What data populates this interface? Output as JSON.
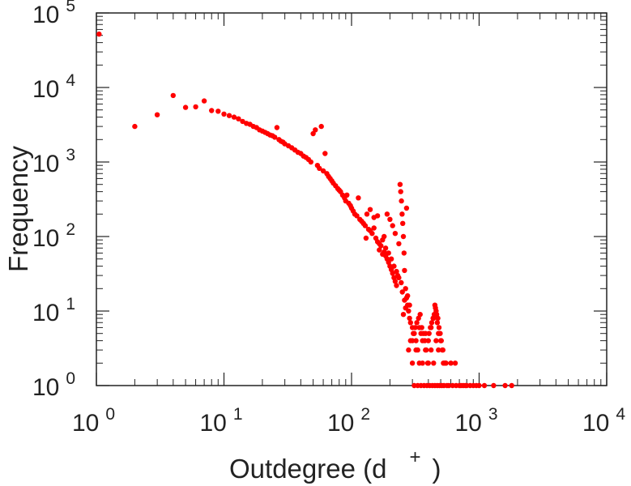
{
  "chart_data": {
    "type": "scatter",
    "xlabel": "Outdegree (d",
    "xlabel_sup": "+",
    "xlabel_close": ")",
    "ylabel": "Frequency",
    "xscale": "log",
    "yscale": "log",
    "xlim": [
      1,
      10000
    ],
    "ylim": [
      1,
      100000
    ],
    "grid": false,
    "marker_color": "#ff0000",
    "x_ticks": [
      {
        "base": "10",
        "exp": "0"
      },
      {
        "base": "10",
        "exp": "1"
      },
      {
        "base": "10",
        "exp": "2"
      },
      {
        "base": "10",
        "exp": "3"
      },
      {
        "base": "10",
        "exp": "4"
      }
    ],
    "y_ticks": [
      {
        "base": "10",
        "exp": "0"
      },
      {
        "base": "10",
        "exp": "1"
      },
      {
        "base": "10",
        "exp": "2"
      },
      {
        "base": "10",
        "exp": "3"
      },
      {
        "base": "10",
        "exp": "4"
      },
      {
        "base": "10",
        "exp": "5"
      }
    ],
    "points": [
      [
        1.05,
        52000
      ],
      [
        2,
        3000
      ],
      [
        3,
        4300
      ],
      [
        4,
        7800
      ],
      [
        5,
        5400
      ],
      [
        6,
        5500
      ],
      [
        7,
        6600
      ],
      [
        8,
        4900
      ],
      [
        9,
        4800
      ],
      [
        10,
        4400
      ],
      [
        11,
        4200
      ],
      [
        12,
        4000
      ],
      [
        13,
        3800
      ],
      [
        14,
        3500
      ],
      [
        15,
        3300
      ],
      [
        16,
        3200
      ],
      [
        17,
        3000
      ],
      [
        18,
        2900
      ],
      [
        19,
        2700
      ],
      [
        20,
        2600
      ],
      [
        21,
        2500
      ],
      [
        22,
        2400
      ],
      [
        23,
        2300
      ],
      [
        24,
        2250
      ],
      [
        25,
        2150
      ],
      [
        26,
        2900
      ],
      [
        27,
        2000
      ],
      [
        28,
        1900
      ],
      [
        29,
        1850
      ],
      [
        30,
        1750
      ],
      [
        32,
        1650
      ],
      [
        34,
        1550
      ],
      [
        36,
        1450
      ],
      [
        38,
        1350
      ],
      [
        40,
        1300
      ],
      [
        42,
        1200
      ],
      [
        44,
        1150
      ],
      [
        46,
        1080
      ],
      [
        48,
        1000
      ],
      [
        50,
        2400
      ],
      [
        52,
        2700
      ],
      [
        54,
        900
      ],
      [
        56,
        820
      ],
      [
        58,
        3000
      ],
      [
        60,
        760
      ],
      [
        62,
        1300
      ],
      [
        64,
        700
      ],
      [
        66,
        640
      ],
      [
        68,
        600
      ],
      [
        70,
        560
      ],
      [
        72,
        520
      ],
      [
        75,
        480
      ],
      [
        78,
        440
      ],
      [
        80,
        420
      ],
      [
        82,
        400
      ],
      [
        85,
        360
      ],
      [
        88,
        330
      ],
      [
        90,
        300
      ],
      [
        92,
        360
      ],
      [
        95,
        280
      ],
      [
        98,
        260
      ],
      [
        100,
        240
      ],
      [
        103,
        220
      ],
      [
        106,
        200
      ],
      [
        110,
        190
      ],
      [
        113,
        330
      ],
      [
        116,
        170
      ],
      [
        120,
        160
      ],
      [
        124,
        150
      ],
      [
        128,
        140
      ],
      [
        132,
        200
      ],
      [
        136,
        125
      ],
      [
        140,
        230
      ],
      [
        145,
        110
      ],
      [
        150,
        180
      ],
      [
        155,
        95
      ],
      [
        160,
        85
      ],
      [
        165,
        80
      ],
      [
        170,
        75
      ],
      [
        175,
        90
      ],
      [
        180,
        62
      ],
      [
        185,
        55
      ],
      [
        190,
        50
      ],
      [
        195,
        45
      ],
      [
        200,
        40
      ],
      [
        205,
        36
      ],
      [
        210,
        32
      ],
      [
        215,
        28
      ],
      [
        220,
        25
      ],
      [
        225,
        22
      ],
      [
        230,
        30
      ],
      [
        235,
        80
      ],
      [
        240,
        500
      ],
      [
        243,
        400
      ],
      [
        246,
        300
      ],
      [
        249,
        200
      ],
      [
        252,
        150
      ],
      [
        255,
        100
      ],
      [
        258,
        60
      ],
      [
        260,
        35
      ],
      [
        265,
        20
      ],
      [
        270,
        15
      ],
      [
        275,
        12
      ],
      [
        280,
        10
      ],
      [
        285,
        8
      ],
      [
        290,
        7
      ],
      [
        300,
        6
      ],
      [
        310,
        5
      ],
      [
        320,
        4
      ],
      [
        330,
        3
      ],
      [
        340,
        2
      ],
      [
        350,
        5
      ],
      [
        360,
        4
      ],
      [
        380,
        3
      ],
      [
        400,
        2
      ],
      [
        420,
        6
      ],
      [
        440,
        8
      ],
      [
        450,
        12
      ],
      [
        460,
        10
      ],
      [
        470,
        7
      ],
      [
        480,
        5
      ],
      [
        500,
        4
      ],
      [
        520,
        3
      ],
      [
        550,
        2
      ],
      [
        600,
        2
      ],
      [
        650,
        2
      ],
      [
        700,
        1
      ],
      [
        750,
        1
      ],
      [
        800,
        1
      ],
      [
        900,
        1
      ],
      [
        1000,
        1
      ],
      [
        1100,
        1
      ],
      [
        1300,
        1
      ],
      [
        1600,
        1
      ],
      [
        1800,
        1
      ],
      [
        270,
        240
      ],
      [
        200,
        170
      ],
      [
        160,
        190
      ],
      [
        140,
        120
      ],
      [
        180,
        100
      ],
      [
        130,
        95
      ],
      [
        210,
        140
      ],
      [
        190,
        200
      ],
      [
        220,
        110
      ],
      [
        150,
        130
      ],
      [
        300,
        4
      ],
      [
        320,
        3
      ],
      [
        340,
        6
      ],
      [
        360,
        2
      ],
      [
        380,
        5
      ],
      [
        400,
        4
      ],
      [
        420,
        3
      ],
      [
        440,
        2
      ],
      [
        460,
        4
      ],
      [
        480,
        3
      ],
      [
        300,
        2
      ],
      [
        310,
        1
      ],
      [
        330,
        1
      ],
      [
        350,
        1
      ],
      [
        370,
        1
      ],
      [
        390,
        1
      ],
      [
        410,
        1
      ],
      [
        430,
        1
      ],
      [
        450,
        1
      ],
      [
        470,
        1
      ],
      [
        490,
        1
      ],
      [
        510,
        1
      ],
      [
        530,
        1
      ],
      [
        560,
        1
      ],
      [
        580,
        1
      ],
      [
        620,
        1
      ],
      [
        660,
        1
      ],
      [
        720,
        1
      ],
      [
        780,
        1
      ],
      [
        850,
        1
      ],
      [
        950,
        1
      ],
      [
        280,
        3
      ],
      [
        290,
        4
      ],
      [
        305,
        5
      ],
      [
        315,
        6
      ],
      [
        325,
        7
      ],
      [
        335,
        8
      ],
      [
        345,
        9
      ],
      [
        355,
        6
      ],
      [
        365,
        5
      ],
      [
        375,
        4
      ],
      [
        385,
        3
      ],
      [
        395,
        2
      ],
      [
        405,
        5
      ],
      [
        415,
        6
      ],
      [
        425,
        7
      ],
      [
        435,
        8
      ],
      [
        445,
        9
      ],
      [
        455,
        11
      ],
      [
        465,
        9
      ],
      [
        475,
        8
      ],
      [
        485,
        6
      ],
      [
        495,
        5
      ],
      [
        505,
        4
      ],
      [
        515,
        3
      ],
      [
        525,
        2
      ],
      [
        535,
        2
      ],
      [
        545,
        2
      ],
      [
        260,
        14
      ],
      [
        250,
        18
      ],
      [
        245,
        24
      ],
      [
        235,
        28
      ],
      [
        225,
        34
      ],
      [
        215,
        40
      ],
      [
        205,
        50
      ],
      [
        195,
        60
      ],
      [
        185,
        70
      ],
      [
        175,
        58
      ],
      [
        165,
        66
      ],
      [
        255,
        9
      ],
      [
        265,
        11
      ],
      [
        275,
        16
      ],
      [
        285,
        12
      ]
    ]
  }
}
